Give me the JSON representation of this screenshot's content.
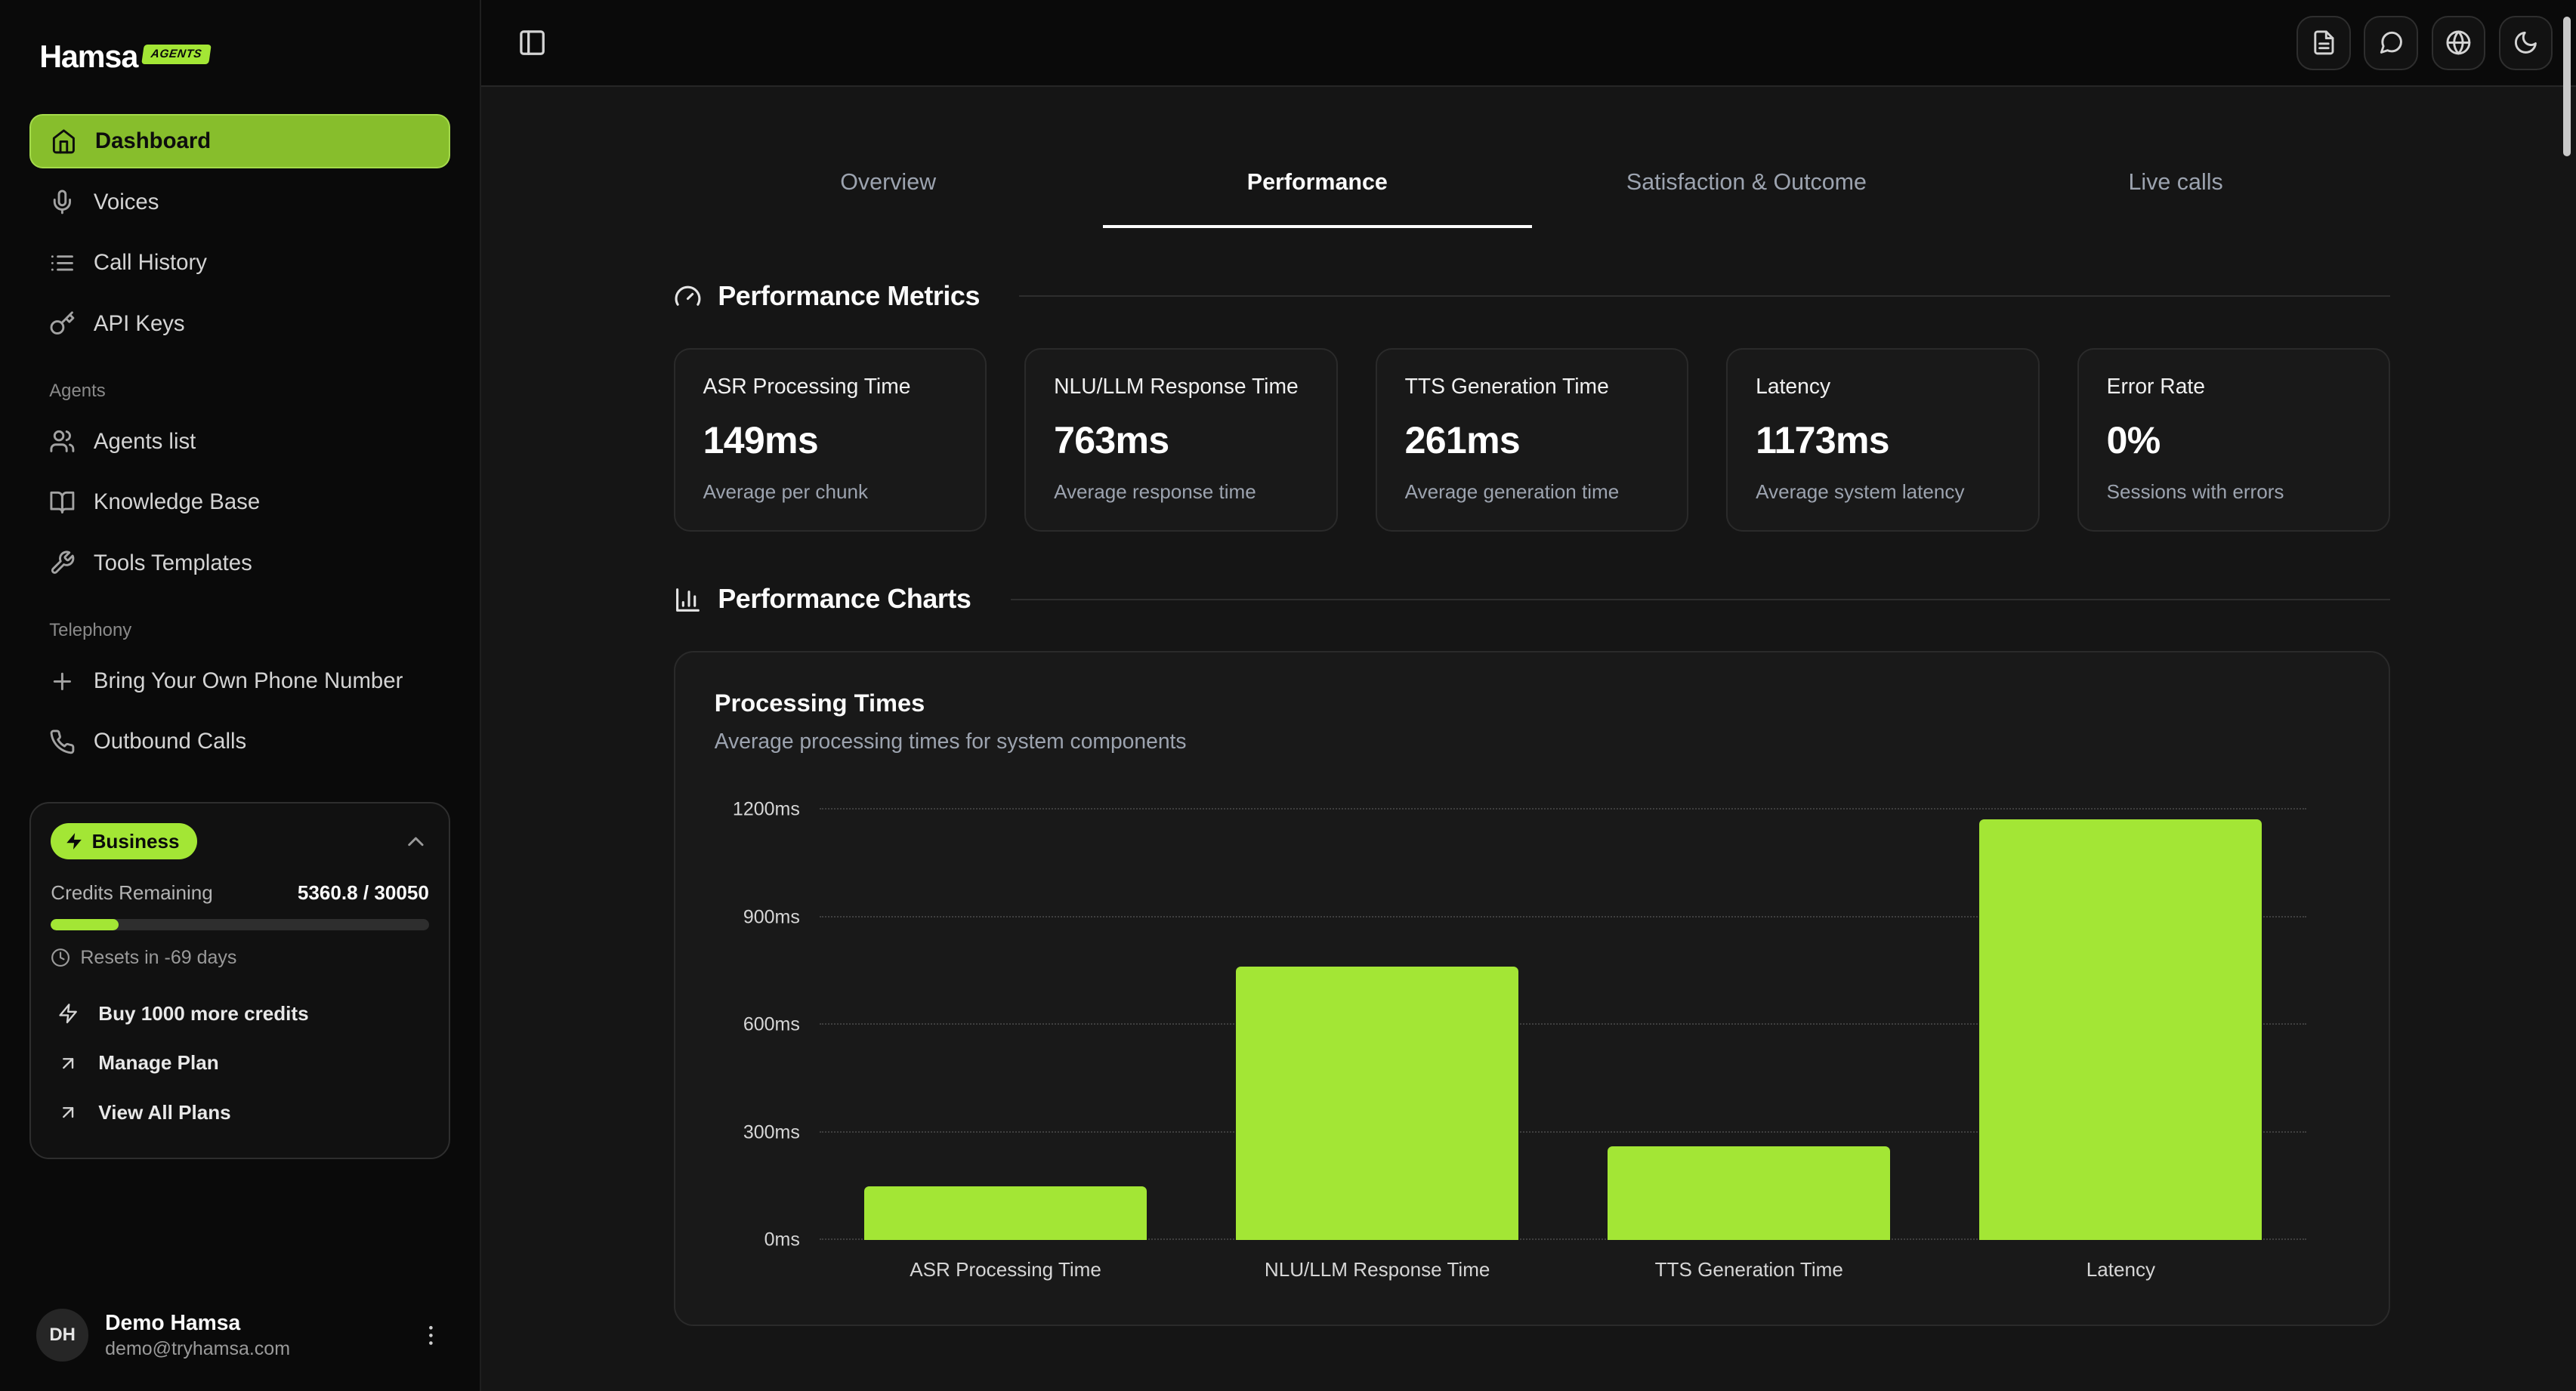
{
  "brand": {
    "name": "Hamsa",
    "badge": "AGENTS"
  },
  "sidebar": {
    "nav": [
      {
        "label": "Dashboard",
        "icon": "home",
        "active": true
      },
      {
        "label": "Voices",
        "icon": "mic"
      },
      {
        "label": "Call History",
        "icon": "list"
      },
      {
        "label": "API Keys",
        "icon": "key"
      }
    ],
    "sections": [
      {
        "title": "Agents",
        "items": [
          {
            "label": "Agents list",
            "icon": "users"
          },
          {
            "label": "Knowledge Base",
            "icon": "book-open"
          },
          {
            "label": "Tools Templates",
            "icon": "wrench"
          }
        ]
      },
      {
        "title": "Telephony",
        "items": [
          {
            "label": "Bring Your Own Phone Number",
            "icon": "plus"
          },
          {
            "label": "Outbound Calls",
            "icon": "phone"
          }
        ]
      }
    ],
    "plan": {
      "badge": "Business",
      "credits_label": "Credits Remaining",
      "credits_value": "5360.8 / 30050",
      "progress_pct": 18,
      "resets_text": "Resets in -69 days",
      "actions": [
        {
          "label": "Buy 1000 more credits",
          "icon": "zap"
        },
        {
          "label": "Manage Plan",
          "icon": "arrow-up-right"
        },
        {
          "label": "View All Plans",
          "icon": "arrow-up-right"
        }
      ]
    },
    "user": {
      "initials": "DH",
      "name": "Demo Hamsa",
      "email": "demo@tryhamsa.com"
    }
  },
  "tabs": [
    {
      "label": "Overview",
      "active": false
    },
    {
      "label": "Performance",
      "active": true
    },
    {
      "label": "Satisfaction & Outcome",
      "active": false
    },
    {
      "label": "Live calls",
      "active": false
    }
  ],
  "sections": {
    "metrics_title": "Performance Metrics",
    "charts_title": "Performance Charts"
  },
  "metrics": [
    {
      "title": "ASR Processing Time",
      "value": "149ms",
      "caption": "Average per chunk"
    },
    {
      "title": "NLU/LLM Response Time",
      "value": "763ms",
      "caption": "Average response time"
    },
    {
      "title": "TTS Generation Time",
      "value": "261ms",
      "caption": "Average generation time"
    },
    {
      "title": "Latency",
      "value": "1173ms",
      "caption": "Average system latency"
    },
    {
      "title": "Error Rate",
      "value": "0%",
      "caption": "Sessions with errors"
    }
  ],
  "chart_card": {
    "title": "Processing Times",
    "subtitle": "Average processing times for system components"
  },
  "chart_data": {
    "type": "bar",
    "title": "Processing Times",
    "categories": [
      "ASR Processing Time",
      "NLU/LLM Response Time",
      "TTS Generation Time",
      "Latency"
    ],
    "values": [
      149,
      763,
      261,
      1173
    ],
    "unit": "ms",
    "y_ticks": [
      0,
      300,
      600,
      900,
      1200
    ],
    "ylim": [
      0,
      1200
    ],
    "bar_color": "#a3e635",
    "grid": "dotted-horizontal",
    "legend": "none"
  },
  "colors": {
    "accent": "#a3e635",
    "background": "#151515",
    "card": "#191919"
  }
}
